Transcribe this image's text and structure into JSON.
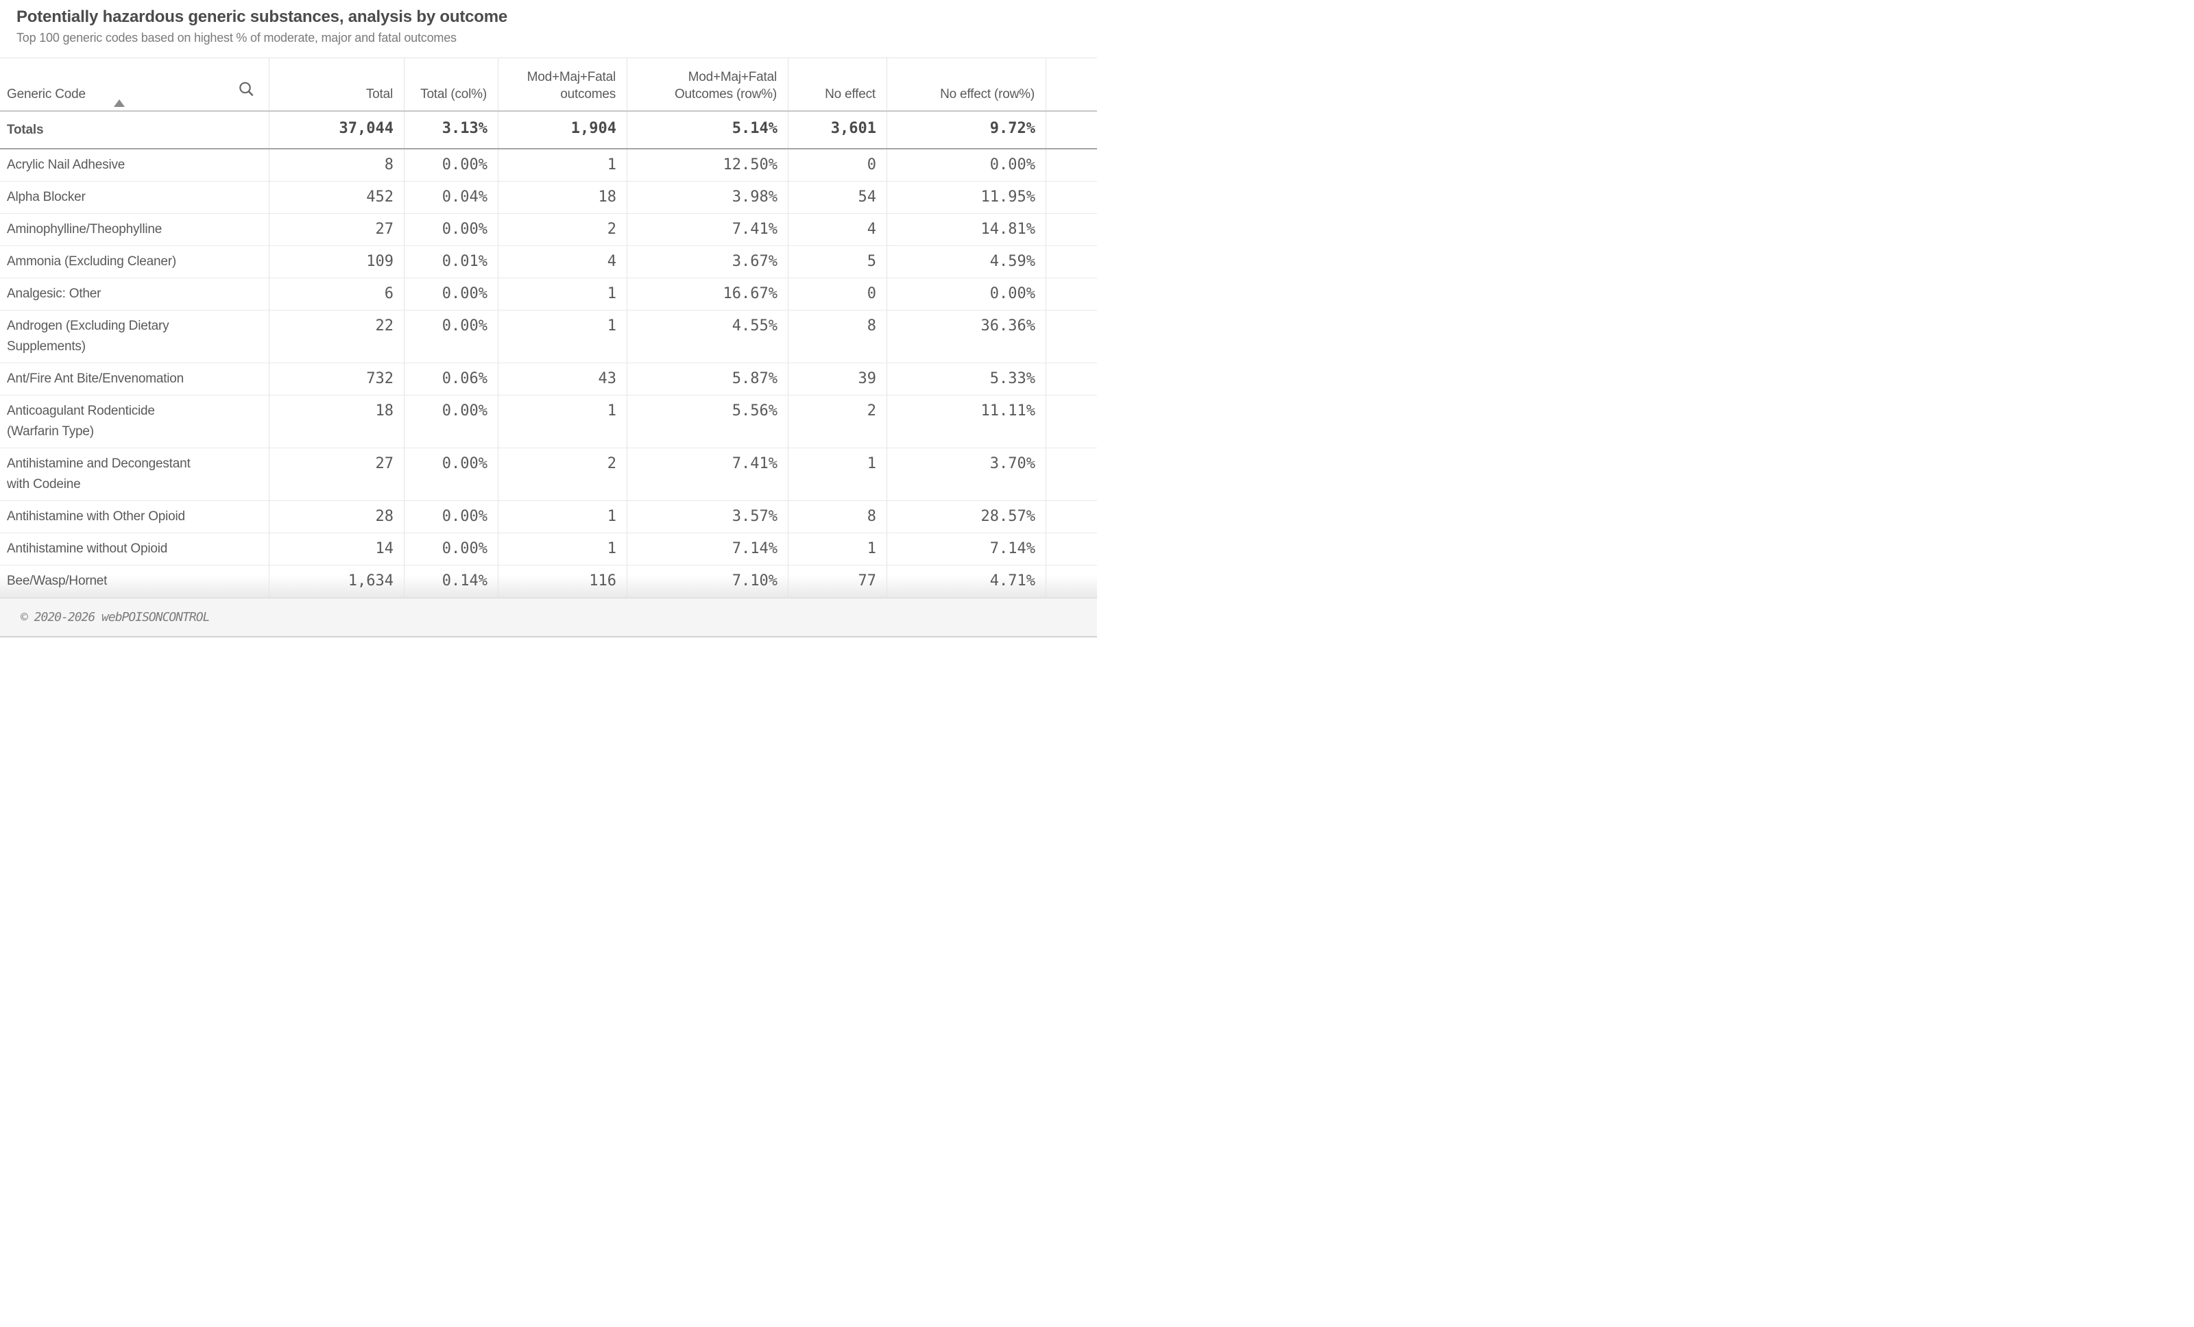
{
  "title": "Potentially hazardous generic substances, analysis by outcome",
  "subtitle": "Top 100 generic codes based on highest % of moderate, major and fatal outcomes",
  "table": {
    "sort": {
      "column": "Generic Code",
      "direction": "ascending"
    },
    "search_icon": "search-icon",
    "sort_icon": "sort-ascending-icon",
    "columns": [
      {
        "label": "Generic Code",
        "align": "left"
      },
      {
        "label": "Total",
        "align": "right"
      },
      {
        "label": "Total (col%)",
        "align": "right"
      },
      {
        "label": "Mod+Maj+Fatal outcomes",
        "align": "right"
      },
      {
        "label": "Mod+Maj+Fatal Outcomes (row%)",
        "align": "right"
      },
      {
        "label": "No effect",
        "align": "right"
      },
      {
        "label": "No effect (row%)",
        "align": "right"
      },
      {
        "label": "",
        "align": "right"
      }
    ],
    "totals": {
      "label": "Totals",
      "values": [
        "37,044",
        "3.13%",
        "1,904",
        "5.14%",
        "3,601",
        "9.72%"
      ]
    },
    "rows": [
      {
        "label": "Acrylic Nail Adhesive",
        "values": [
          "8",
          "0.00%",
          "1",
          "12.50%",
          "0",
          "0.00%"
        ]
      },
      {
        "label": "Alpha Blocker",
        "values": [
          "452",
          "0.04%",
          "18",
          "3.98%",
          "54",
          "11.95%"
        ]
      },
      {
        "label": "Aminophylline/Theophylline",
        "values": [
          "27",
          "0.00%",
          "2",
          "7.41%",
          "4",
          "14.81%"
        ]
      },
      {
        "label": "Ammonia (Excluding Cleaner)",
        "values": [
          "109",
          "0.01%",
          "4",
          "3.67%",
          "5",
          "4.59%"
        ]
      },
      {
        "label": "Analgesic: Other",
        "values": [
          "6",
          "0.00%",
          "1",
          "16.67%",
          "0",
          "0.00%"
        ]
      },
      {
        "label": "Androgen (Excluding Dietary Supplements)",
        "values": [
          "22",
          "0.00%",
          "1",
          "4.55%",
          "8",
          "36.36%"
        ]
      },
      {
        "label": "Ant/Fire Ant Bite/Envenomation",
        "values": [
          "732",
          "0.06%",
          "43",
          "5.87%",
          "39",
          "5.33%"
        ]
      },
      {
        "label": "Anticoagulant Rodenticide (Warfarin Type)",
        "values": [
          "18",
          "0.00%",
          "1",
          "5.56%",
          "2",
          "11.11%"
        ]
      },
      {
        "label": "Antihistamine and Decongestant with Codeine",
        "values": [
          "27",
          "0.00%",
          "2",
          "7.41%",
          "1",
          "3.70%"
        ]
      },
      {
        "label": "Antihistamine with Other Opioid",
        "values": [
          "28",
          "0.00%",
          "1",
          "3.57%",
          "8",
          "28.57%"
        ]
      },
      {
        "label": "Antihistamine without Opioid",
        "values": [
          "14",
          "0.00%",
          "1",
          "7.14%",
          "1",
          "7.14%"
        ]
      },
      {
        "label": "Bee/Wasp/Hornet",
        "values": [
          "1,634",
          "0.14%",
          "116",
          "7.10%",
          "77",
          "4.71%"
        ]
      }
    ]
  },
  "footer": {
    "copyright": "© 2020-2026 webPOISONCONTROL"
  },
  "colors": {
    "title_text": "#4b4b4b",
    "subtitle_text": "#7a7a7a",
    "body_text": "#595959",
    "totals_text": "#4a4a4a",
    "grid_line": "#e4e4e4",
    "header_rule": "#c6c6c6",
    "totals_rule": "#a3a3a3",
    "footer_bg": "#f5f5f5",
    "footer_text": "#7c7c7c"
  }
}
